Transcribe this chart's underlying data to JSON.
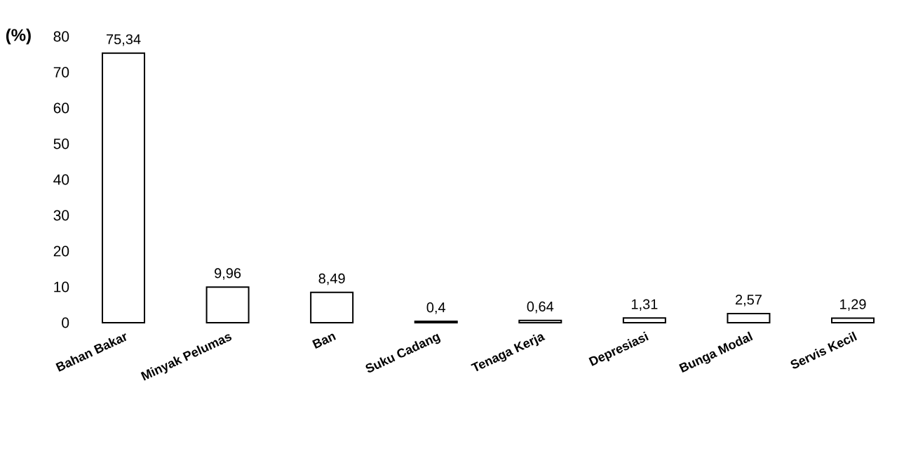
{
  "chart_data": {
    "type": "bar",
    "ylabel": "(%)",
    "categories": [
      "Bahan Bakar",
      "Minyak Pelumas",
      "Ban",
      "Suku Cadang",
      "Tenaga Kerja",
      "Depresiasi",
      "Bunga Modal",
      "Servis Kecil"
    ],
    "values": [
      75.34,
      9.96,
      8.49,
      0.4,
      0.64,
      1.31,
      2.57,
      1.29
    ],
    "value_labels": [
      "75,34",
      "9,96",
      "8,49",
      "0,4",
      "0,64",
      "1,31",
      "2,57",
      "1,29"
    ],
    "color": "#ffffff",
    "ylim": [
      0,
      80
    ],
    "yticks": [
      0,
      10,
      20,
      30,
      40,
      50,
      60,
      70,
      80
    ]
  }
}
